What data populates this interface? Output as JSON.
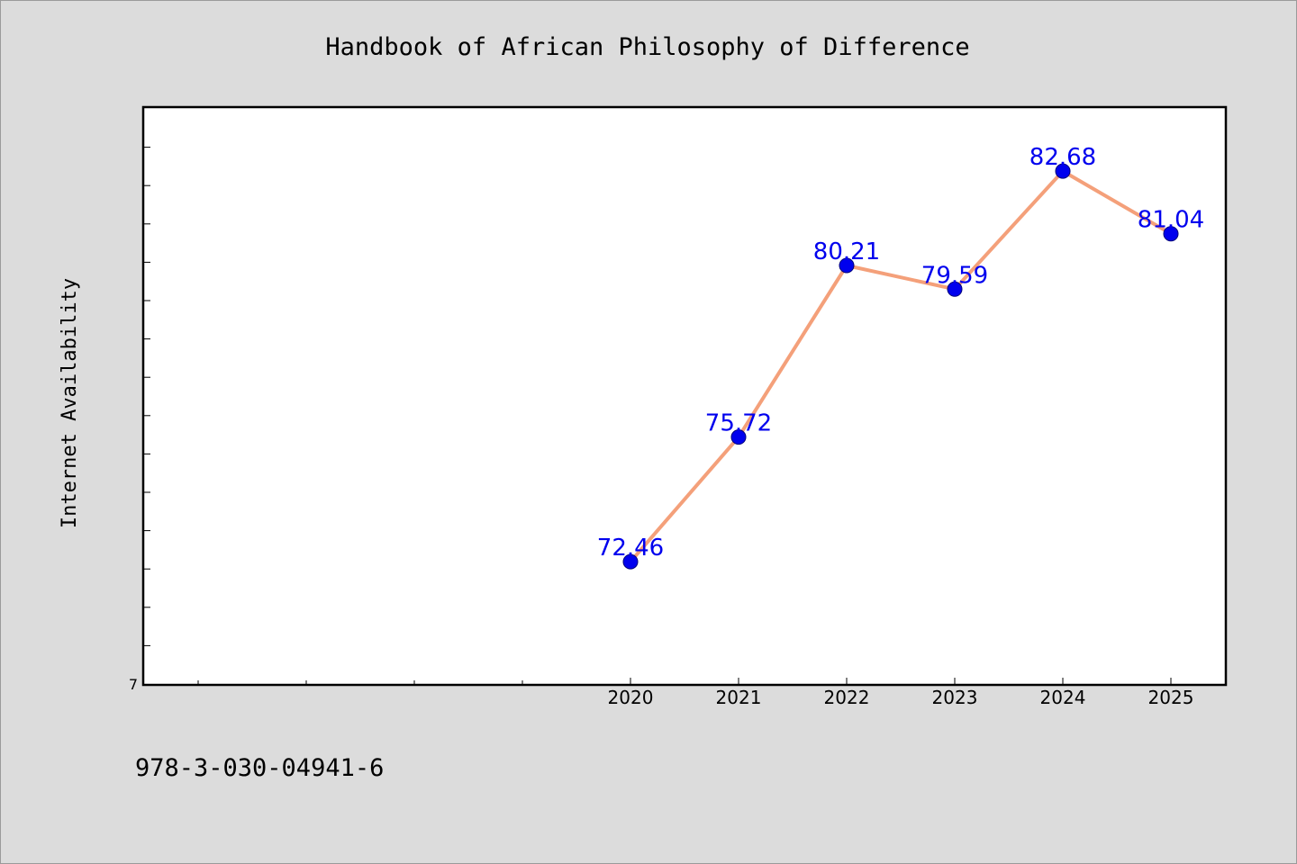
{
  "chart_data": {
    "type": "line",
    "title": "Handbook of African Philosophy of Difference",
    "xlabel": "",
    "ylabel": "Internet Availability",
    "x": [
      "2020",
      "2021",
      "2022",
      "2023",
      "2024",
      "2025"
    ],
    "series": [
      {
        "values": [
          72.46,
          75.72,
          80.21,
          79.59,
          82.68,
          81.04
        ],
        "labels": [
          "72.46",
          "75.72",
          "80.21",
          "79.59",
          "82.68",
          "81.04"
        ]
      }
    ],
    "y_tick_labels": [
      "7"
    ],
    "ylim": [
      69.26,
      84.33
    ],
    "grid": false,
    "legend": "none",
    "line_color": "#f4a07a",
    "marker_color": "#0000ee",
    "label_color": "#0000ee"
  },
  "footer": {
    "isbn": "978-3-030-04941-6"
  }
}
